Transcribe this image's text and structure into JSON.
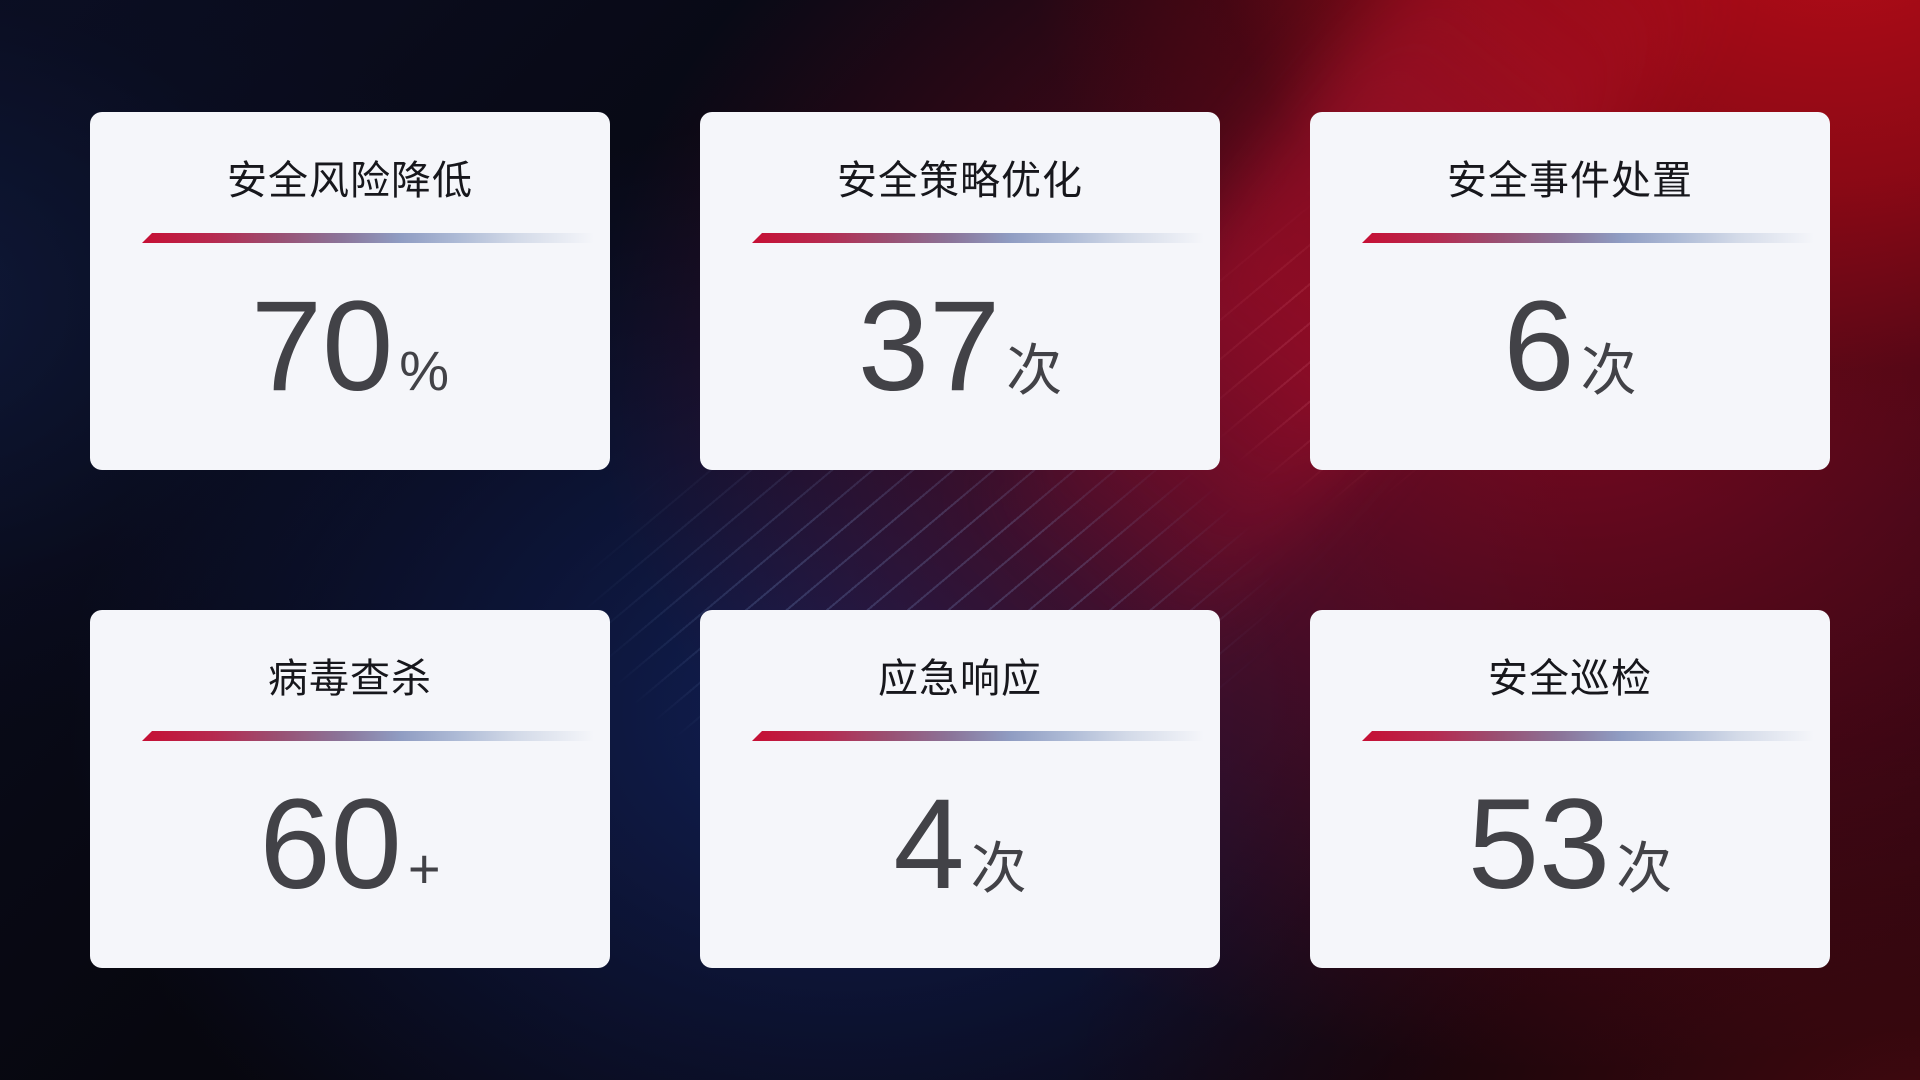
{
  "colors": {
    "accent_red": "#c60f34",
    "divider_blue": "#8f9cc2",
    "card_bg": "#f5f6fa",
    "title_text": "#17171c",
    "value_text": "#424247",
    "bg_red_glow": "#960914",
    "bg_blue_glow": "#162c78",
    "bg_base": "#07060e"
  },
  "cards": [
    {
      "title": "安全风险降低",
      "value": "70",
      "unit": "%"
    },
    {
      "title": "安全策略优化",
      "value": "37",
      "unit": "次"
    },
    {
      "title": "安全事件处置",
      "value": "6",
      "unit": "次"
    },
    {
      "title": "病毒查杀",
      "value": "60",
      "unit": "+"
    },
    {
      "title": "应急响应",
      "value": "4",
      "unit": "次"
    },
    {
      "title": "安全巡检",
      "value": "53",
      "unit": "次"
    }
  ]
}
